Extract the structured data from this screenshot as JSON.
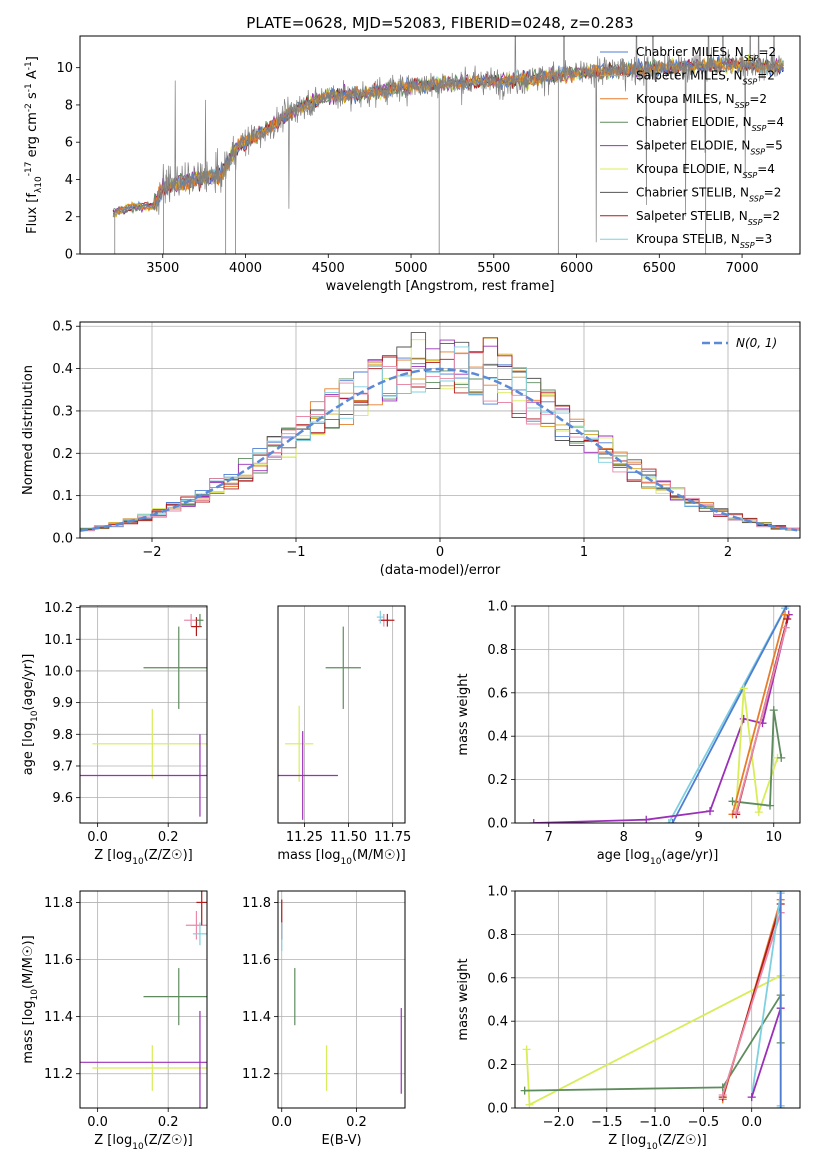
{
  "figure": {
    "title": "PLATE=0628, MJD=52083, FIBERID=0248, z=0.283"
  },
  "colors": {
    "chabrier_miles": "#4f7dd4",
    "salpeter_miles": "#d6a520",
    "kroupa_miles": "#e57d2a",
    "chabrier_elodie": "#5e8c5e",
    "salpeter_elodie": "#9b30b8",
    "kroupa_elodie": "#d9ec5a",
    "chabrier_stelib": "#555555",
    "salpeter_stelib": "#b01b1b",
    "kroupa_stelib": "#7fd0e0",
    "pink": "#e88aa8",
    "gaussian": "#5b8ad6",
    "grid": "#b0b0b0"
  },
  "chart_data": [
    {
      "id": "spectrum",
      "type": "line",
      "xlabel": "wavelength [Angstrom, rest frame]",
      "ylabel": "Flux [f_λ10^-17 erg cm^-2 s^-1 A^-1]",
      "xlim": [
        3000,
        7350
      ],
      "ylim": [
        0,
        11.7
      ],
      "xticks": [
        3500,
        4000,
        4500,
        5000,
        5500,
        6000,
        6500,
        7000
      ],
      "yticks": [
        0,
        2,
        4,
        6,
        8,
        10
      ],
      "grid": false,
      "legend_position": "right",
      "legend": [
        {
          "label": "Chabrier MILES, N",
          "sub": "SSP",
          "suffix": "=2",
          "color_key": "chabrier_miles"
        },
        {
          "label": "Salpeter MILES, N",
          "sub": "SSP",
          "suffix": "=2",
          "color_key": "salpeter_miles"
        },
        {
          "label": "Kroupa MILES, N",
          "sub": "SSP",
          "suffix": "=2",
          "color_key": "kroupa_miles"
        },
        {
          "label": "Chabrier ELODIE, N",
          "sub": "SSP",
          "suffix": "=4",
          "color_key": "chabrier_elodie"
        },
        {
          "label": "Salpeter ELODIE, N",
          "sub": "SSP",
          "suffix": "=5",
          "color_key": "salpeter_elodie"
        },
        {
          "label": "Kroupa ELODIE, N",
          "sub": "SSP",
          "suffix": "=4",
          "color_key": "kroupa_elodie"
        },
        {
          "label": "Chabrier STELIB, N",
          "sub": "SSP",
          "suffix": "=2",
          "color_key": "chabrier_stelib"
        },
        {
          "label": "Salpeter STELIB, N",
          "sub": "SSP",
          "suffix": "=2",
          "color_key": "salpeter_stelib"
        },
        {
          "label": "Kroupa STELIB, N",
          "sub": "SSP",
          "suffix": "=3",
          "color_key": "kroupa_stelib"
        }
      ],
      "continuum_points": [
        [
          3200,
          2.2
        ],
        [
          3300,
          2.5
        ],
        [
          3450,
          2.6
        ],
        [
          3500,
          3.6
        ],
        [
          3700,
          4.0
        ],
        [
          3850,
          4.2
        ],
        [
          3950,
          5.8
        ],
        [
          4100,
          6.5
        ],
        [
          4300,
          7.8
        ],
        [
          4500,
          8.5
        ],
        [
          4700,
          8.6
        ],
        [
          5000,
          9.0
        ],
        [
          5300,
          9.2
        ],
        [
          5600,
          9.3
        ],
        [
          6000,
          9.7
        ],
        [
          6500,
          10.0
        ],
        [
          7000,
          10.2
        ],
        [
          7250,
          10.0
        ]
      ]
    },
    {
      "id": "residuals",
      "type": "histogram",
      "xlabel": "(data-model)/error",
      "ylabel": "Normed distribution",
      "xlim": [
        -2.5,
        2.5
      ],
      "ylim": [
        0,
        0.51
      ],
      "xticks": [
        -2,
        -1,
        0,
        1,
        2
      ],
      "yticks": [
        0.0,
        0.1,
        0.2,
        0.3,
        0.4,
        0.5
      ],
      "grid": true,
      "legend_position": "top-right",
      "legend": [
        {
          "label": "N(0, 1)",
          "color_key": "gaussian"
        }
      ]
    },
    {
      "id": "age_vs_Z",
      "type": "errorbar",
      "xlabel": "Z [log10(Z/Z☉)]",
      "ylabel": "age  [log10(age/yr)]",
      "xlim": [
        -0.05,
        0.31
      ],
      "ylim": [
        9.52,
        10.205
      ],
      "xticks": [
        0.0,
        0.2
      ],
      "yticks": [
        9.6,
        9.7,
        9.8,
        9.9,
        10.0,
        10.1,
        10.2
      ],
      "grid": true,
      "points": [
        {
          "x": 0.23,
          "y": 10.01,
          "xerr": 0.1,
          "yerr": 0.13,
          "color_key": "chabrier_elodie"
        },
        {
          "x": 0.155,
          "y": 9.77,
          "xerr": 0.17,
          "yerr": 0.11,
          "color_key": "kroupa_elodie"
        },
        {
          "x": 0.29,
          "y": 9.67,
          "xerr": 0.35,
          "yerr": 0.13,
          "color_key": "salpeter_elodie"
        },
        {
          "x": 0.265,
          "y": 10.16,
          "xerr": 0.02,
          "yerr": 0.02,
          "color_key": "pink"
        },
        {
          "x": 0.28,
          "y": 10.14,
          "xerr": 0.015,
          "yerr": 0.03,
          "color_key": "salpeter_stelib"
        },
        {
          "x": 0.29,
          "y": 10.16,
          "xerr": 0.01,
          "yerr": 0.02,
          "color_key": "chabrier_elodie"
        }
      ]
    },
    {
      "id": "age_vs_mass",
      "type": "errorbar",
      "xlabel": "mass [log10(M/M☉)]",
      "ylabel": "",
      "xlim": [
        11.1,
        11.82
      ],
      "ylim": [
        9.52,
        10.205
      ],
      "xticks": [
        11.25,
        11.5,
        11.75
      ],
      "grid": true,
      "points": [
        {
          "x": 11.47,
          "y": 10.01,
          "xerr": 0.1,
          "yerr": 0.13,
          "color_key": "chabrier_elodie"
        },
        {
          "x": 11.22,
          "y": 9.77,
          "xerr": 0.08,
          "yerr": 0.12,
          "color_key": "kroupa_elodie"
        },
        {
          "x": 11.24,
          "y": 9.67,
          "xerr": 0.2,
          "yerr": 0.14,
          "color_key": "salpeter_elodie"
        },
        {
          "x": 11.7,
          "y": 10.16,
          "xerr": 0.03,
          "yerr": 0.02,
          "color_key": "pink"
        },
        {
          "x": 11.72,
          "y": 10.16,
          "xerr": 0.04,
          "yerr": 0.02,
          "color_key": "salpeter_stelib"
        },
        {
          "x": 11.68,
          "y": 10.17,
          "xerr": 0.02,
          "yerr": 0.02,
          "color_key": "kroupa_stelib"
        }
      ]
    },
    {
      "id": "massweight_vs_age",
      "type": "line",
      "xlabel": "age  [log10(age/yr)]",
      "ylabel": "mass weight",
      "xlim": [
        6.55,
        10.35
      ],
      "ylim": [
        0,
        1.0
      ],
      "xticks": [
        7,
        8,
        9,
        10
      ],
      "yticks": [
        0.0,
        0.2,
        0.4,
        0.6,
        0.8,
        1.0
      ],
      "grid": true,
      "series": [
        {
          "color_key": "kroupa_stelib",
          "points": [
            [
              8.6,
              0.0
            ],
            [
              10.15,
              0.99
            ]
          ]
        },
        {
          "color_key": "chabrier_miles",
          "points": [
            [
              8.65,
              0.0
            ],
            [
              10.17,
              1.0
            ]
          ]
        },
        {
          "color_key": "salpeter_elodie",
          "points": [
            [
              6.8,
              0.0
            ],
            [
              8.3,
              0.015
            ],
            [
              9.15,
              0.055
            ],
            [
              9.6,
              0.48
            ],
            [
              9.85,
              0.46
            ],
            [
              10.2,
              0.96
            ]
          ]
        },
        {
          "color_key": "kroupa_elodie",
          "points": [
            [
              9.5,
              0.08
            ],
            [
              9.6,
              0.62
            ],
            [
              9.8,
              0.05
            ],
            [
              10.05,
              0.3
            ]
          ]
        },
        {
          "color_key": "chabrier_elodie",
          "points": [
            [
              9.45,
              0.1
            ],
            [
              9.95,
              0.08
            ],
            [
              10.0,
              0.52
            ],
            [
              10.1,
              0.3
            ]
          ]
        },
        {
          "color_key": "kroupa_miles",
          "points": [
            [
              9.45,
              0.04
            ],
            [
              10.15,
              0.96
            ]
          ]
        },
        {
          "color_key": "salpeter_stelib",
          "points": [
            [
              9.5,
              0.04
            ],
            [
              10.18,
              0.94
            ]
          ]
        },
        {
          "color_key": "pink",
          "points": [
            [
              9.5,
              0.05
            ],
            [
              10.16,
              0.9
            ]
          ]
        }
      ]
    },
    {
      "id": "mass_vs_Z",
      "type": "errorbar",
      "xlabel": "Z [log10(Z/Z☉)]",
      "ylabel": "mass [log10(M/M☉)]",
      "xlim": [
        -0.05,
        0.31
      ],
      "ylim": [
        11.08,
        11.84
      ],
      "xticks": [
        0.0,
        0.2
      ],
      "yticks": [
        11.2,
        11.4,
        11.6,
        11.8
      ],
      "grid": true,
      "points": [
        {
          "x": 0.23,
          "y": 11.47,
          "xerr": 0.1,
          "yerr": 0.1,
          "color_key": "chabrier_elodie"
        },
        {
          "x": 0.155,
          "y": 11.22,
          "xerr": 0.17,
          "yerr": 0.08,
          "color_key": "kroupa_elodie"
        },
        {
          "x": 0.29,
          "y": 11.24,
          "xerr": 0.35,
          "yerr": 0.18,
          "color_key": "salpeter_elodie"
        },
        {
          "x": 0.28,
          "y": 11.72,
          "xerr": 0.03,
          "yerr": 0.05,
          "color_key": "pink"
        },
        {
          "x": 0.295,
          "y": 11.8,
          "xerr": 0.015,
          "yerr": 0.08,
          "color_key": "salpeter_stelib"
        },
        {
          "x": 0.29,
          "y": 11.69,
          "xerr": 0.02,
          "yerr": 0.04,
          "color_key": "kroupa_stelib"
        }
      ]
    },
    {
      "id": "mass_vs_ebv",
      "type": "errorbar",
      "xlabel": "E(B-V)",
      "ylabel": "",
      "xlim": [
        -0.01,
        0.33
      ],
      "ylim": [
        11.08,
        11.84
      ],
      "xticks": [
        0.0,
        0.2
      ],
      "yticks": [
        11.2,
        11.4,
        11.6,
        11.8
      ],
      "grid": true,
      "points": [
        {
          "x": 0.035,
          "y": 11.47,
          "xerr": 0,
          "yerr": 0.1,
          "color_key": "chabrier_elodie"
        },
        {
          "x": 0.12,
          "y": 11.22,
          "xerr": 0,
          "yerr": 0.08,
          "color_key": "kroupa_elodie"
        },
        {
          "x": 0.32,
          "y": 11.28,
          "xerr": 0,
          "yerr": 0.15,
          "color_key": "salpeter_elodie"
        },
        {
          "x": 0.0,
          "y": 11.74,
          "xerr": 0,
          "yerr": 0.07,
          "color_key": "salpeter_stelib"
        },
        {
          "x": 0.0,
          "y": 11.68,
          "xerr": 0,
          "yerr": 0.05,
          "color_key": "kroupa_stelib"
        }
      ]
    },
    {
      "id": "massweight_vs_Z",
      "type": "line",
      "xlabel": "Z [log10(Z/Z☉)]",
      "ylabel": "mass weight",
      "xlim": [
        -2.45,
        0.5
      ],
      "ylim": [
        0,
        1.0
      ],
      "xticks": [
        -2.0,
        -1.5,
        -1.0,
        -0.5,
        0.0
      ],
      "yticks": [
        0.0,
        0.2,
        0.4,
        0.6,
        0.8,
        1.0
      ],
      "grid": true,
      "series": [
        {
          "color_key": "kroupa_elodie",
          "points": [
            [
              -2.33,
              0.27
            ],
            [
              -2.3,
              0.015
            ],
            [
              0.3,
              0.61
            ]
          ]
        },
        {
          "color_key": "chabrier_elodie",
          "points": [
            [
              -2.35,
              0.08
            ],
            [
              -0.3,
              0.095
            ],
            [
              0.3,
              0.52
            ],
            [
              0.3,
              0.3
            ]
          ]
        },
        {
          "color_key": "kroupa_miles",
          "points": [
            [
              -0.3,
              0.04
            ],
            [
              0.3,
              0.96
            ]
          ]
        },
        {
          "color_key": "salpeter_stelib",
          "points": [
            [
              -0.3,
              0.05
            ],
            [
              0.3,
              0.94
            ]
          ]
        },
        {
          "color_key": "pink",
          "points": [
            [
              -0.3,
              0.06
            ],
            [
              0.3,
              0.9
            ]
          ]
        },
        {
          "color_key": "kroupa_stelib",
          "points": [
            [
              0.0,
              0.05
            ],
            [
              0.3,
              0.99
            ],
            [
              0.3,
              0.01
            ]
          ]
        },
        {
          "color_key": "salpeter_elodie",
          "points": [
            [
              0.0,
              0.05
            ],
            [
              0.3,
              0.46
            ]
          ]
        },
        {
          "color_key": "chabrier_miles",
          "points": [
            [
              0.3,
              0.0
            ],
            [
              0.3,
              1.0
            ]
          ]
        }
      ]
    }
  ]
}
